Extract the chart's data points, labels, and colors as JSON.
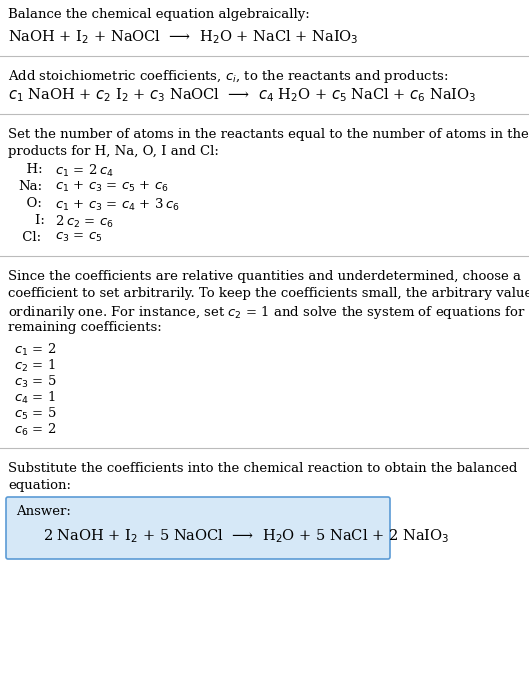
{
  "title_line1": "Balance the chemical equation algebraically:",
  "equation_line": "NaOH + I$_2$ + NaOCl  ⟶  H$_2$O + NaCl + NaIO$_3$",
  "section2_intro": "Add stoichiometric coefficients, $c_i$, to the reactants and products:",
  "section2_eq": "$c_1$ NaOH + $c_2$ I$_2$ + $c_3$ NaOCl  ⟶  $c_4$ H$_2$O + $c_5$ NaCl + $c_6$ NaIO$_3$",
  "section3_intro1": "Set the number of atoms in the reactants equal to the number of atoms in the",
  "section3_intro2": "products for H, Na, O, I and Cl:",
  "eq_labels": [
    "  H:",
    "Na:",
    "  O:",
    "    I:",
    " Cl:"
  ],
  "eq_formulas": [
    "$c_1$ = 2 $c_4$",
    "$c_1$ + $c_3$ = $c_5$ + $c_6$",
    "$c_1$ + $c_3$ = $c_4$ + 3 $c_6$",
    "2 $c_2$ = $c_6$",
    "$c_3$ = $c_5$"
  ],
  "section4_text1": "Since the coefficients are relative quantities and underdetermined, choose a",
  "section4_text2": "coefficient to set arbitrarily. To keep the coefficients small, the arbitrary value is",
  "section4_text3": "ordinarily one. For instance, set $c_2$ = 1 and solve the system of equations for the",
  "section4_text4": "remaining coefficients:",
  "coefficients": [
    "$c_1$ = 2",
    "$c_2$ = 1",
    "$c_3$ = 5",
    "$c_4$ = 1",
    "$c_5$ = 5",
    "$c_6$ = 2"
  ],
  "section5_text1": "Substitute the coefficients into the chemical reaction to obtain the balanced",
  "section5_text2": "equation:",
  "answer_label": "Answer:",
  "answer_eq": "2 NaOH + I$_2$ + 5 NaOCl  ⟶  H$_2$O + 5 NaCl + 2 NaIO$_3$",
  "bg_color": "#ffffff",
  "text_color": "#000000",
  "line_color": "#bbbbbb",
  "answer_box_color": "#d6e8f7",
  "answer_box_edge": "#5b9bd5",
  "font_size": 9.5,
  "eq_font_size": 10.5
}
